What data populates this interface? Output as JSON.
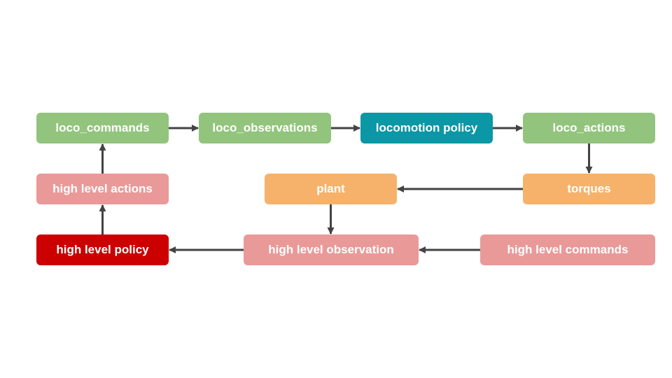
{
  "colors": {
    "green": "#93c47d",
    "teal": "#0b97a5",
    "orange": "#f6b26b",
    "pink": "#ea9999",
    "red": "#cc0000",
    "arrow": "#434343"
  },
  "nodes": {
    "loco_commands": {
      "label": "loco_commands",
      "color": "green"
    },
    "loco_observations": {
      "label": "loco_observations",
      "color": "green"
    },
    "locomotion_policy": {
      "label": "locomotion policy",
      "color": "teal"
    },
    "loco_actions": {
      "label": "loco_actions",
      "color": "green"
    },
    "torques": {
      "label": "torques",
      "color": "orange"
    },
    "plant": {
      "label": "plant",
      "color": "orange"
    },
    "high_level_actions": {
      "label": "high level actions",
      "color": "pink"
    },
    "high_level_policy": {
      "label": "high level policy",
      "color": "red"
    },
    "high_level_observation": {
      "label": "high level observation",
      "color": "pink"
    },
    "high_level_commands": {
      "label": "high level commands",
      "color": "pink"
    }
  },
  "edges": [
    {
      "from": "loco_commands",
      "to": "loco_observations"
    },
    {
      "from": "loco_observations",
      "to": "locomotion_policy"
    },
    {
      "from": "locomotion_policy",
      "to": "loco_actions"
    },
    {
      "from": "loco_actions",
      "to": "torques"
    },
    {
      "from": "torques",
      "to": "plant"
    },
    {
      "from": "plant",
      "to": "high_level_observation"
    },
    {
      "from": "high_level_commands",
      "to": "high_level_observation"
    },
    {
      "from": "high_level_observation",
      "to": "high_level_policy"
    },
    {
      "from": "high_level_policy",
      "to": "high_level_actions"
    },
    {
      "from": "high_level_actions",
      "to": "loco_commands"
    }
  ]
}
